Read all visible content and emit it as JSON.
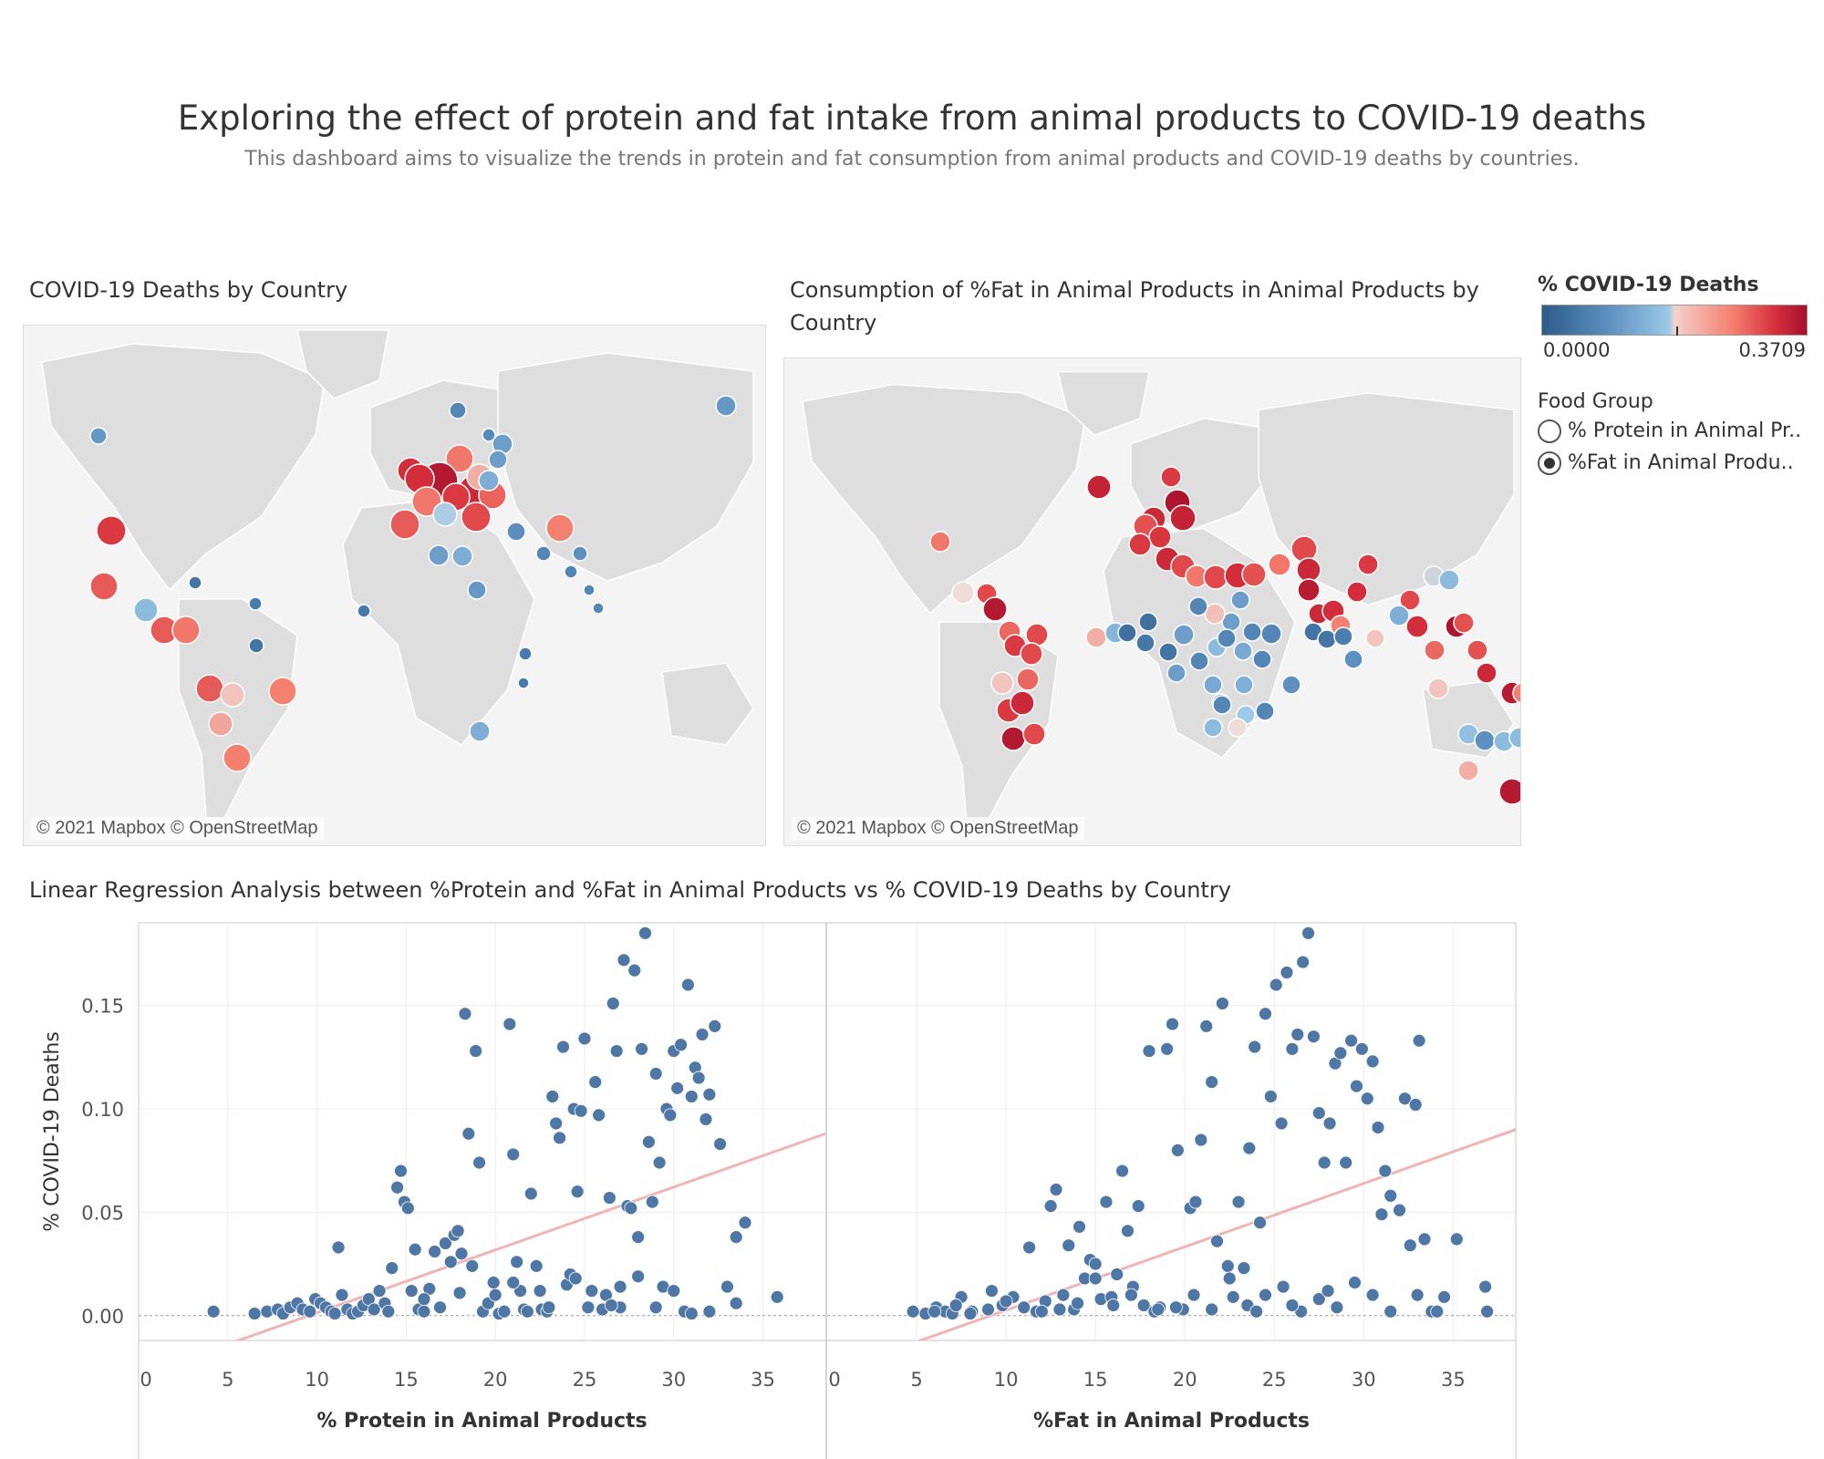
{
  "header": {
    "title": "Exploring the effect of protein and fat intake from animal products to COVID-19 deaths",
    "subtitle": "This dashboard aims to visualize the trends in protein and fat consumption from animal products and COVID-19 deaths by countries."
  },
  "maps": {
    "left_title": "COVID-19 Deaths by Country",
    "right_title_line1": "Consumption of %Fat in Animal Products in Animal Products by",
    "right_title_line2": "Country",
    "credit": "© 2021 Mapbox © OpenStreetMap"
  },
  "legend": {
    "color_title": "% COVID-19 Deaths",
    "color_min": "0.0000",
    "color_max": "0.3709",
    "food_group_title": "Food Group",
    "items": [
      "% Protein in Animal Pr..",
      "%Fat in Animal Produ.."
    ],
    "colors": {
      "low": "#2b5c8a",
      "mid_low": "#8fbfe0",
      "mid": "#f0f0f0",
      "mid_high": "#f48070",
      "high": "#a50f2d"
    }
  },
  "regression": {
    "title": "Linear Regression Analysis between %Protein and %Fat in Animal Products vs % COVID-19 Deaths by Country"
  },
  "chart_data": [
    {
      "type": "scatter",
      "xlabel": "% Protein in Animal Products",
      "ylabel": "% COVID-19 Deaths",
      "xlim": [
        0,
        38.5
      ],
      "ylim": [
        -0.012,
        0.19
      ],
      "xticks": [
        "0",
        "5",
        "10",
        "15",
        "20",
        "25",
        "30",
        "35"
      ],
      "yticks": [
        "0.00",
        "0.05",
        "0.10",
        "0.15"
      ],
      "trend_line": {
        "x": [
          0,
          38.5
        ],
        "y": [
          -0.029,
          0.088
        ]
      },
      "point_color": "#4f77a6",
      "trend_color": "#f0b4b4",
      "points": [
        [
          4.2,
          0.002
        ],
        [
          6.5,
          0.001
        ],
        [
          7.2,
          0.002
        ],
        [
          7.8,
          0.003
        ],
        [
          8.1,
          0.001
        ],
        [
          8.5,
          0.004
        ],
        [
          8.9,
          0.006
        ],
        [
          9.2,
          0.003
        ],
        [
          9.6,
          0.002
        ],
        [
          9.9,
          0.008
        ],
        [
          10.2,
          0.006
        ],
        [
          10.5,
          0.004
        ],
        [
          10.8,
          0.002
        ],
        [
          11.0,
          0.001
        ],
        [
          11.2,
          0.033
        ],
        [
          11.4,
          0.01
        ],
        [
          11.7,
          0.003
        ],
        [
          12.0,
          0.001
        ],
        [
          12.3,
          0.002
        ],
        [
          12.6,
          0.005
        ],
        [
          12.9,
          0.008
        ],
        [
          13.2,
          0.003
        ],
        [
          13.5,
          0.012
        ],
        [
          13.8,
          0.006
        ],
        [
          14.0,
          0.002
        ],
        [
          14.2,
          0.023
        ],
        [
          14.5,
          0.062
        ],
        [
          14.7,
          0.07
        ],
        [
          14.9,
          0.055
        ],
        [
          15.1,
          0.052
        ],
        [
          15.3,
          0.012
        ],
        [
          15.5,
          0.032
        ],
        [
          15.7,
          0.003
        ],
        [
          16.0,
          0.002
        ],
        [
          16.3,
          0.013
        ],
        [
          16.6,
          0.031
        ],
        [
          16.9,
          0.004
        ],
        [
          17.2,
          0.035
        ],
        [
          17.5,
          0.026
        ],
        [
          17.7,
          0.039
        ],
        [
          17.9,
          0.041
        ],
        [
          18.1,
          0.03
        ],
        [
          18.3,
          0.146
        ],
        [
          18.5,
          0.088
        ],
        [
          18.7,
          0.024
        ],
        [
          18.9,
          0.128
        ],
        [
          19.1,
          0.074
        ],
        [
          19.3,
          0.002
        ],
        [
          19.6,
          0.006
        ],
        [
          19.9,
          0.016
        ],
        [
          20.2,
          0.001
        ],
        [
          20.5,
          0.002
        ],
        [
          20.8,
          0.141
        ],
        [
          21.0,
          0.078
        ],
        [
          21.2,
          0.026
        ],
        [
          21.4,
          0.012
        ],
        [
          21.6,
          0.003
        ],
        [
          21.8,
          0.002
        ],
        [
          22.0,
          0.059
        ],
        [
          22.3,
          0.024
        ],
        [
          22.6,
          0.003
        ],
        [
          22.9,
          0.002
        ],
        [
          23.2,
          0.106
        ],
        [
          23.4,
          0.093
        ],
        [
          23.6,
          0.086
        ],
        [
          23.8,
          0.13
        ],
        [
          24.0,
          0.015
        ],
        [
          24.2,
          0.02
        ],
        [
          24.4,
          0.1
        ],
        [
          24.6,
          0.06
        ],
        [
          24.8,
          0.099
        ],
        [
          25.0,
          0.134
        ],
        [
          25.2,
          0.004
        ],
        [
          25.4,
          0.012
        ],
        [
          25.6,
          0.113
        ],
        [
          25.8,
          0.097
        ],
        [
          26.0,
          0.003
        ],
        [
          26.2,
          0.01
        ],
        [
          26.4,
          0.057
        ],
        [
          26.6,
          0.151
        ],
        [
          26.8,
          0.128
        ],
        [
          27.0,
          0.004
        ],
        [
          27.2,
          0.172
        ],
        [
          27.4,
          0.053
        ],
        [
          27.6,
          0.052
        ],
        [
          27.8,
          0.167
        ],
        [
          28.0,
          0.038
        ],
        [
          28.2,
          0.129
        ],
        [
          28.4,
          0.185
        ],
        [
          28.6,
          0.084
        ],
        [
          28.8,
          0.055
        ],
        [
          29.0,
          0.117
        ],
        [
          29.2,
          0.074
        ],
        [
          29.4,
          0.014
        ],
        [
          29.6,
          0.1
        ],
        [
          29.8,
          0.097
        ],
        [
          30.0,
          0.128
        ],
        [
          30.2,
          0.11
        ],
        [
          30.4,
          0.131
        ],
        [
          30.6,
          0.002
        ],
        [
          30.8,
          0.16
        ],
        [
          31.0,
          0.106
        ],
        [
          31.2,
          0.12
        ],
        [
          31.4,
          0.115
        ],
        [
          31.6,
          0.136
        ],
        [
          31.8,
          0.095
        ],
        [
          32.0,
          0.107
        ],
        [
          32.3,
          0.14
        ],
        [
          32.6,
          0.083
        ],
        [
          33.0,
          0.014
        ],
        [
          33.5,
          0.006
        ],
        [
          34.0,
          0.045
        ],
        [
          35.8,
          0.009
        ],
        [
          22.5,
          0.012
        ],
        [
          24.5,
          0.018
        ],
        [
          26.5,
          0.005
        ],
        [
          28.0,
          0.019
        ],
        [
          30.0,
          0.012
        ],
        [
          32.0,
          0.002
        ],
        [
          18.0,
          0.011
        ],
        [
          16.0,
          0.008
        ],
        [
          20.0,
          0.01
        ],
        [
          23.0,
          0.004
        ],
        [
          27.0,
          0.014
        ],
        [
          29.0,
          0.004
        ],
        [
          31.0,
          0.001
        ],
        [
          33.5,
          0.038
        ],
        [
          21.0,
          0.016
        ]
      ]
    },
    {
      "type": "scatter",
      "xlabel": "%Fat in Animal Products",
      "ylabel": "% COVID-19 Deaths",
      "xlim": [
        0,
        38.5
      ],
      "ylim": [
        -0.012,
        0.19
      ],
      "xticks": [
        "0",
        "5",
        "10",
        "15",
        "20",
        "25",
        "30",
        "35"
      ],
      "yticks": [
        "0.00",
        "0.05",
        "0.10",
        "0.15"
      ],
      "trend_line": {
        "x": [
          0,
          38.5
        ],
        "y": [
          -0.028,
          0.09
        ]
      },
      "point_color": "#4f77a6",
      "trend_color": "#f0b4b4",
      "points": [
        [
          4.8,
          0.002
        ],
        [
          5.5,
          0.001
        ],
        [
          6.1,
          0.004
        ],
        [
          6.6,
          0.002
        ],
        [
          7.0,
          0.001
        ],
        [
          7.5,
          0.009
        ],
        [
          8.1,
          0.002
        ],
        [
          9.2,
          0.012
        ],
        [
          9.8,
          0.005
        ],
        [
          10.4,
          0.009
        ],
        [
          11.0,
          0.004
        ],
        [
          11.3,
          0.033
        ],
        [
          11.7,
          0.002
        ],
        [
          12.2,
          0.007
        ],
        [
          12.5,
          0.053
        ],
        [
          12.8,
          0.061
        ],
        [
          13.2,
          0.01
        ],
        [
          13.5,
          0.034
        ],
        [
          13.8,
          0.003
        ],
        [
          14.1,
          0.043
        ],
        [
          14.4,
          0.018
        ],
        [
          14.7,
          0.027
        ],
        [
          15.0,
          0.025
        ],
        [
          15.3,
          0.008
        ],
        [
          15.6,
          0.055
        ],
        [
          15.9,
          0.009
        ],
        [
          16.2,
          0.02
        ],
        [
          16.5,
          0.07
        ],
        [
          16.8,
          0.041
        ],
        [
          17.1,
          0.014
        ],
        [
          17.4,
          0.053
        ],
        [
          17.7,
          0.005
        ],
        [
          18.0,
          0.128
        ],
        [
          18.3,
          0.002
        ],
        [
          18.6,
          0.004
        ],
        [
          19.0,
          0.129
        ],
        [
          19.3,
          0.141
        ],
        [
          19.6,
          0.08
        ],
        [
          19.9,
          0.003
        ],
        [
          20.3,
          0.052
        ],
        [
          20.6,
          0.055
        ],
        [
          20.9,
          0.085
        ],
        [
          21.2,
          0.14
        ],
        [
          21.5,
          0.113
        ],
        [
          21.8,
          0.036
        ],
        [
          22.1,
          0.151
        ],
        [
          22.4,
          0.024
        ],
        [
          22.7,
          0.009
        ],
        [
          23.0,
          0.055
        ],
        [
          23.3,
          0.023
        ],
        [
          23.6,
          0.081
        ],
        [
          23.9,
          0.13
        ],
        [
          24.2,
          0.045
        ],
        [
          24.5,
          0.146
        ],
        [
          24.8,
          0.106
        ],
        [
          25.1,
          0.16
        ],
        [
          25.4,
          0.093
        ],
        [
          25.7,
          0.166
        ],
        [
          26.0,
          0.129
        ],
        [
          26.3,
          0.136
        ],
        [
          26.6,
          0.171
        ],
        [
          26.9,
          0.185
        ],
        [
          27.2,
          0.135
        ],
        [
          27.5,
          0.098
        ],
        [
          27.8,
          0.074
        ],
        [
          28.1,
          0.093
        ],
        [
          28.4,
          0.122
        ],
        [
          28.7,
          0.127
        ],
        [
          29.0,
          0.074
        ],
        [
          29.3,
          0.133
        ],
        [
          29.6,
          0.111
        ],
        [
          29.9,
          0.129
        ],
        [
          30.2,
          0.105
        ],
        [
          30.5,
          0.123
        ],
        [
          30.8,
          0.091
        ],
        [
          31.0,
          0.049
        ],
        [
          31.2,
          0.07
        ],
        [
          31.5,
          0.058
        ],
        [
          32.0,
          0.051
        ],
        [
          32.3,
          0.105
        ],
        [
          32.6,
          0.034
        ],
        [
          32.9,
          0.102
        ],
        [
          33.1,
          0.133
        ],
        [
          33.4,
          0.037
        ],
        [
          33.8,
          0.002
        ],
        [
          34.1,
          0.002
        ],
        [
          35.2,
          0.037
        ],
        [
          36.8,
          0.014
        ],
        [
          36.9,
          0.002
        ],
        [
          19.5,
          0.004
        ],
        [
          20.5,
          0.01
        ],
        [
          21.5,
          0.003
        ],
        [
          22.5,
          0.018
        ],
        [
          23.5,
          0.005
        ],
        [
          24.5,
          0.01
        ],
        [
          25.5,
          0.014
        ],
        [
          26.5,
          0.002
        ],
        [
          27.5,
          0.008
        ],
        [
          28.5,
          0.004
        ],
        [
          29.5,
          0.016
        ],
        [
          30.5,
          0.01
        ],
        [
          31.5,
          0.002
        ],
        [
          33.0,
          0.01
        ],
        [
          34.5,
          0.009
        ],
        [
          18.5,
          0.003
        ],
        [
          17.0,
          0.01
        ],
        [
          16.0,
          0.005
        ],
        [
          15.0,
          0.018
        ],
        [
          14.0,
          0.006
        ],
        [
          13.0,
          0.003
        ],
        [
          12.0,
          0.002
        ],
        [
          11.0,
          0.004
        ],
        [
          10.0,
          0.007
        ],
        [
          9.0,
          0.003
        ],
        [
          8.0,
          0.001
        ],
        [
          7.2,
          0.005
        ],
        [
          6.0,
          0.002
        ],
        [
          28.0,
          0.012
        ],
        [
          26.0,
          0.005
        ],
        [
          24.0,
          0.002
        ]
      ]
    }
  ]
}
